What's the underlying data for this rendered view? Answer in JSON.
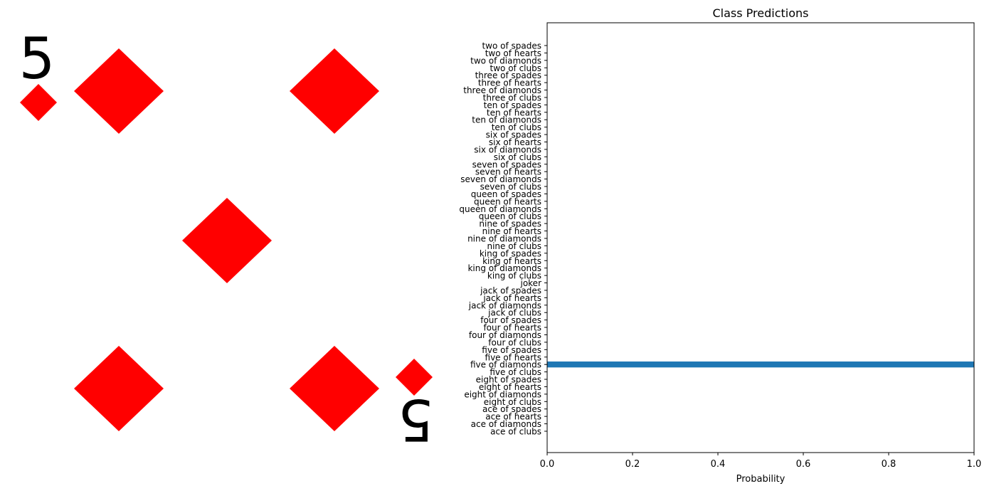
{
  "card_image": {
    "rank_symbol": "5",
    "suit": "diamonds",
    "pip_count": 5,
    "ink_color": "#ff0000"
  },
  "chart_data": {
    "type": "bar",
    "orientation": "horizontal",
    "title": "Class Predictions",
    "xlabel": "Probability",
    "ylabel": "",
    "xlim": [
      0,
      1
    ],
    "x_ticks": [
      "0.0",
      "0.2",
      "0.4",
      "0.6",
      "0.8",
      "1.0"
    ],
    "grid": false,
    "bar_color": "#1f77b4",
    "categories": [
      "two of spades",
      "two of hearts",
      "two of diamonds",
      "two of clubs",
      "three of spades",
      "three of hearts",
      "three of diamonds",
      "three of clubs",
      "ten of spades",
      "ten of hearts",
      "ten of diamonds",
      "ten of clubs",
      "six of spades",
      "six of hearts",
      "six of diamonds",
      "six of clubs",
      "seven of spades",
      "seven of hearts",
      "seven of diamonds",
      "seven of clubs",
      "queen of spades",
      "queen of hearts",
      "queen of diamonds",
      "queen of clubs",
      "nine of spades",
      "nine of hearts",
      "nine of diamonds",
      "nine of clubs",
      "king of spades",
      "king of hearts",
      "king of diamonds",
      "king of clubs",
      "joker",
      "jack of spades",
      "jack of hearts",
      "jack of diamonds",
      "jack of clubs",
      "four of spades",
      "four of hearts",
      "four of diamonds",
      "four of clubs",
      "five of spades",
      "five of hearts",
      "five of diamonds",
      "five of clubs",
      "eight of spades",
      "eight of hearts",
      "eight of diamonds",
      "eight of clubs",
      "ace of spades",
      "ace of hearts",
      "ace of diamonds",
      "ace of clubs"
    ],
    "values": [
      0,
      0,
      0,
      0,
      0,
      0,
      0,
      0,
      0,
      0,
      0,
      0,
      0,
      0,
      0,
      0,
      0,
      0,
      0,
      0,
      0,
      0,
      0,
      0,
      0,
      0,
      0,
      0,
      0,
      0,
      0,
      0,
      0,
      0,
      0,
      0,
      0,
      0,
      0,
      0,
      0,
      0,
      0,
      1.0,
      0,
      0,
      0,
      0,
      0,
      0,
      0,
      0,
      0
    ]
  }
}
